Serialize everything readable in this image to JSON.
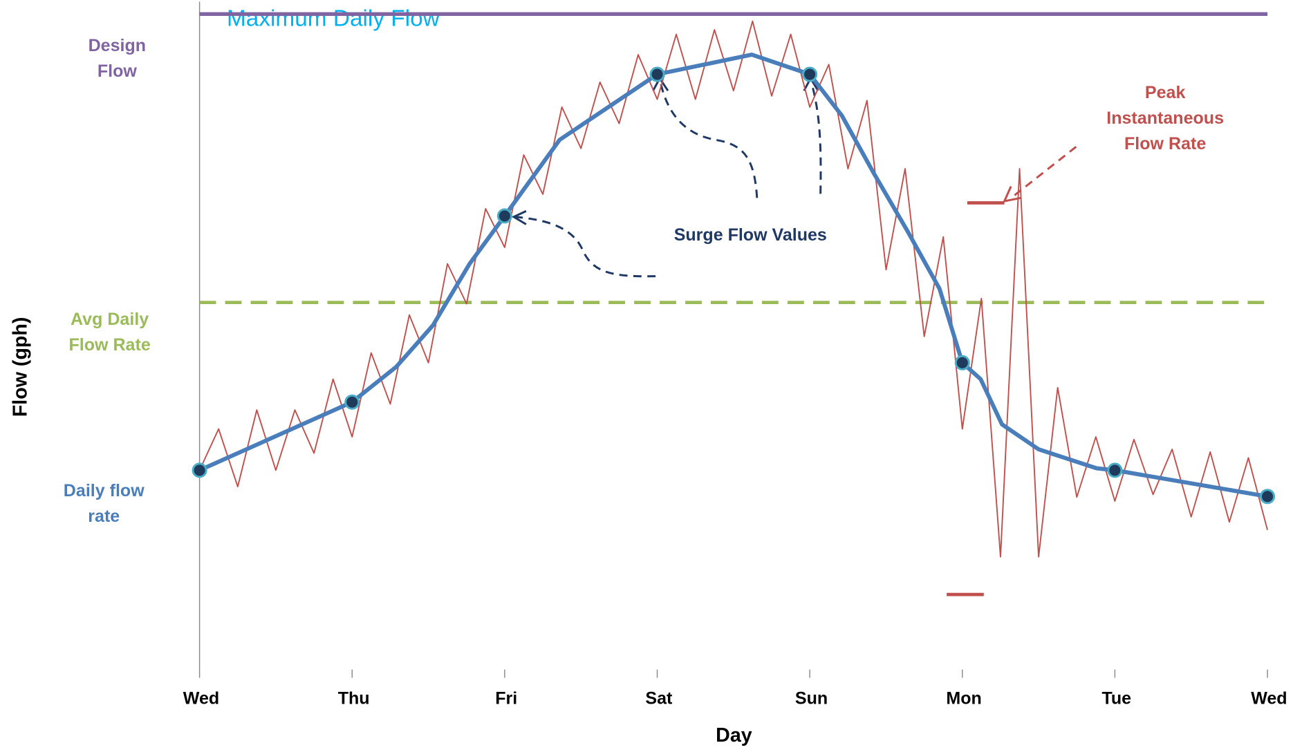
{
  "chart_data": {
    "type": "line",
    "title": "Maximum Daily Flow",
    "xlabel": "Day",
    "ylabel": "Flow (gph)",
    "xlim": [
      0,
      7
    ],
    "ylim": [
      0,
      100
    ],
    "xticks": [
      {
        "value": 0,
        "label": "Wed"
      },
      {
        "value": 1,
        "label": "Thu"
      },
      {
        "value": 2,
        "label": "Fri"
      },
      {
        "value": 3,
        "label": "Sat"
      },
      {
        "value": 4,
        "label": "Sun"
      },
      {
        "value": 5,
        "label": "Mon"
      },
      {
        "value": 6,
        "label": "Tue"
      },
      {
        "value": 7,
        "label": "Wed"
      }
    ],
    "reference_lines": [
      {
        "name": "Design Flow",
        "value": 100,
        "color": "#8064a2",
        "dashed": false
      },
      {
        "name": "Avg Daily Flow Rate",
        "value": 56,
        "color": "#9bbb59",
        "dashed": true
      }
    ],
    "series": [
      {
        "color": "#c0504d",
        "x": [
          0,
          0.125,
          0.25,
          0.375,
          0.5,
          0.625,
          0.75,
          0.875,
          1,
          1.125,
          1.25,
          1.375,
          1.5,
          1.625,
          1.75,
          1.875,
          2,
          2.125,
          2.25,
          2.375,
          2.5,
          2.625,
          2.75,
          2.875,
          3,
          3.125,
          3.25,
          3.375,
          3.5,
          3.625,
          3.75,
          3.875,
          4,
          4.125,
          4.25,
          4.375,
          4.5,
          4.625,
          4.75,
          4.875,
          5,
          5.125,
          5.25,
          5.375,
          5.5,
          5.625,
          5.75,
          5.875,
          6,
          6.125,
          6.25,
          6.375,
          6.5,
          6.625,
          6.75,
          6.875,
          7
        ],
        "values": [
          30.4,
          36.7,
          27.9,
          39.6,
          30.4,
          39.6,
          33.0,
          44.3,
          35.5,
          48.3,
          40.5,
          54.1,
          46.8,
          61.9,
          55.8,
          70.3,
          64.4,
          78.5,
          72.5,
          85.8,
          79.5,
          89.6,
          83.3,
          93.8,
          87.0,
          96.9,
          87.0,
          97.6,
          88.3,
          98.9,
          87.5,
          96.9,
          85.8,
          92.3,
          76.4,
          86.8,
          61.0,
          76.4,
          50.8,
          66.0,
          36.7,
          56.6,
          17.2,
          76.4,
          17.2,
          43.0,
          26.3,
          35.5,
          25.7,
          35.1,
          26.7,
          33.6,
          23.3,
          33.2,
          22.5,
          32.3,
          21.3
        ]
      },
      {
        "name": "Daily flow rate",
        "color": "#4a7ebb",
        "marker_color": "#1f3a5a",
        "marker_edge": "#4bacc6",
        "x": [
          0,
          1,
          1.29,
          1.53,
          1.77,
          2,
          2.36,
          3,
          3.62,
          4,
          4.21,
          4.42,
          4.64,
          4.85,
          5,
          5.12,
          5.26,
          5.5,
          5.88,
          6,
          7
        ],
        "values": [
          30.4,
          40.8,
          46.2,
          52.5,
          61.9,
          69.2,
          80.8,
          90.8,
          93.8,
          90.8,
          84.5,
          75.7,
          66.9,
          58.1,
          46.8,
          44.3,
          37.4,
          33.6,
          30.7,
          30.4,
          26.4
        ]
      }
    ],
    "annotations": [
      {
        "text": "Surge Flow Values",
        "color": "#1f3864"
      },
      {
        "text": "Peak Instantaneous Flow Rate",
        "color": "#c0504d"
      }
    ]
  }
}
